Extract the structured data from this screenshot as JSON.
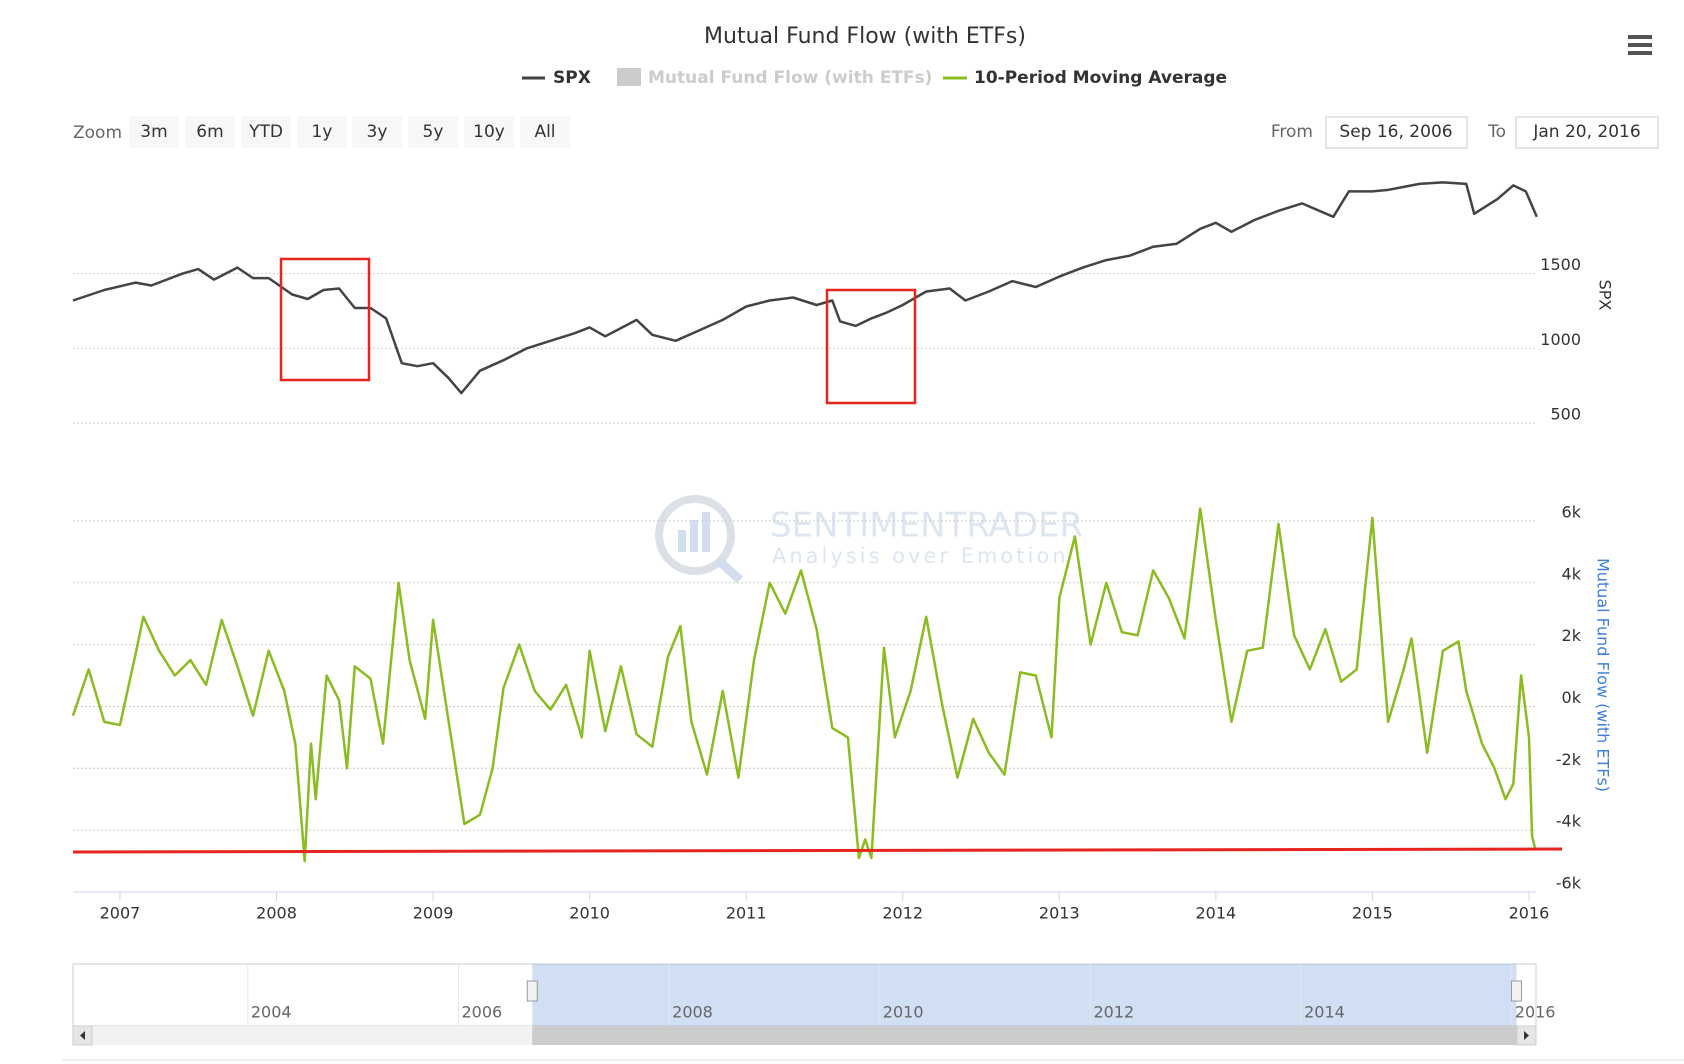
{
  "title": "Mutual Fund Flow (with ETFs)",
  "zoom": {
    "label": "Zoom",
    "buttons": [
      "3m",
      "6m",
      "YTD",
      "1y",
      "3y",
      "5y",
      "10y",
      "All"
    ]
  },
  "range": {
    "from_label": "From",
    "from": "Sep 16, 2006",
    "to_label": "To",
    "to": "Jan 20, 2016"
  },
  "watermark": {
    "title": "SENTIMENTRADER",
    "subtitle": "Analysis over Emotion"
  },
  "chart_data": [
    {
      "type": "line",
      "y_label": "SPX",
      "xlim": [
        2006.7,
        2016.045
      ],
      "ylim": [
        500,
        2200
      ],
      "yticks": [
        500,
        1000,
        1500
      ],
      "grid": true,
      "series": [
        {
          "name": "SPX",
          "color": "#434348",
          "x": [
            2006.7,
            2006.9,
            2007.1,
            2007.2,
            2007.4,
            2007.5,
            2007.6,
            2007.75,
            2007.85,
            2007.95,
            2008.1,
            2008.2,
            2008.3,
            2008.4,
            2008.5,
            2008.6,
            2008.7,
            2008.8,
            2008.9,
            2009.0,
            2009.1,
            2009.18,
            2009.3,
            2009.45,
            2009.6,
            2009.75,
            2009.9,
            2010.0,
            2010.1,
            2010.3,
            2010.4,
            2010.55,
            2010.7,
            2010.85,
            2011.0,
            2011.15,
            2011.3,
            2011.45,
            2011.55,
            2011.6,
            2011.7,
            2011.8,
            2011.9,
            2012.0,
            2012.15,
            2012.3,
            2012.4,
            2012.55,
            2012.7,
            2012.85,
            2013.0,
            2013.15,
            2013.3,
            2013.45,
            2013.6,
            2013.75,
            2013.9,
            2014.0,
            2014.1,
            2014.25,
            2014.4,
            2014.55,
            2014.75,
            2014.85,
            2015.0,
            2015.1,
            2015.3,
            2015.45,
            2015.6,
            2015.65,
            2015.8,
            2015.9,
            2015.98,
            2016.05
          ],
          "values": [
            1320,
            1390,
            1440,
            1420,
            1500,
            1530,
            1460,
            1540,
            1470,
            1470,
            1360,
            1330,
            1390,
            1400,
            1270,
            1270,
            1200,
            900,
            880,
            900,
            800,
            700,
            850,
            920,
            1000,
            1050,
            1100,
            1140,
            1080,
            1190,
            1090,
            1050,
            1120,
            1190,
            1280,
            1320,
            1340,
            1290,
            1320,
            1180,
            1150,
            1200,
            1240,
            1290,
            1380,
            1400,
            1320,
            1380,
            1450,
            1410,
            1480,
            1540,
            1590,
            1620,
            1680,
            1700,
            1800,
            1840,
            1780,
            1860,
            1920,
            1970,
            1880,
            2050,
            2050,
            2060,
            2100,
            2110,
            2100,
            1900,
            2000,
            2090,
            2050,
            1880
          ]
        }
      ]
    },
    {
      "type": "line",
      "y_label": "Mutual Fund Flow (with ETFs)",
      "xlim": [
        2006.7,
        2016.045
      ],
      "ylim": [
        -6000,
        7000
      ],
      "yticks": [
        {
          "value": -6000,
          "label": "-6k"
        },
        {
          "value": -4000,
          "label": "-4k"
        },
        {
          "value": -2000,
          "label": "-2k"
        },
        {
          "value": 0,
          "label": "0k"
        },
        {
          "value": 2000,
          "label": "2k"
        },
        {
          "value": 4000,
          "label": "4k"
        },
        {
          "value": 6000,
          "label": "6k"
        }
      ],
      "xticks": [
        2007,
        2008,
        2009,
        2010,
        2011,
        2012,
        2013,
        2014,
        2015,
        2016
      ],
      "grid": true,
      "hidden_series": {
        "name": "Mutual Fund Flow (with ETFs)",
        "color": "#cccccc"
      },
      "series": [
        {
          "name": "10-Period Moving Average",
          "color": "#8bbc21",
          "x": [
            2006.7,
            2006.8,
            2006.9,
            2007.0,
            2007.1,
            2007.15,
            2007.25,
            2007.35,
            2007.45,
            2007.55,
            2007.65,
            2007.75,
            2007.85,
            2007.95,
            2008.05,
            2008.12,
            2008.18,
            2008.22,
            2008.25,
            2008.32,
            2008.4,
            2008.45,
            2008.5,
            2008.6,
            2008.68,
            2008.78,
            2008.85,
            2008.95,
            2009.0,
            2009.1,
            2009.2,
            2009.3,
            2009.38,
            2009.45,
            2009.55,
            2009.65,
            2009.75,
            2009.85,
            2009.95,
            2010.0,
            2010.1,
            2010.2,
            2010.3,
            2010.4,
            2010.5,
            2010.58,
            2010.65,
            2010.75,
            2010.85,
            2010.95,
            2011.05,
            2011.15,
            2011.25,
            2011.35,
            2011.45,
            2011.55,
            2011.65,
            2011.72,
            2011.76,
            2011.8,
            2011.88,
            2011.95,
            2012.05,
            2012.15,
            2012.25,
            2012.35,
            2012.45,
            2012.55,
            2012.65,
            2012.75,
            2012.85,
            2012.95,
            2013.0,
            2013.1,
            2013.2,
            2013.3,
            2013.4,
            2013.5,
            2013.6,
            2013.7,
            2013.8,
            2013.9,
            2014.0,
            2014.1,
            2014.2,
            2014.3,
            2014.4,
            2014.5,
            2014.6,
            2014.7,
            2014.8,
            2014.9,
            2015.0,
            2015.1,
            2015.2,
            2015.25,
            2015.35,
            2015.45,
            2015.55,
            2015.6,
            2015.7,
            2015.78,
            2015.85,
            2015.9,
            2015.95,
            2016.0,
            2016.02,
            2016.04
          ],
          "values": [
            -300,
            1200,
            -500,
            -600,
            1700,
            2900,
            1800,
            1000,
            1500,
            700,
            2800,
            1300,
            -300,
            1800,
            500,
            -1200,
            -5000,
            -1200,
            -3000,
            1000,
            200,
            -2000,
            1300,
            900,
            -1200,
            4000,
            1500,
            -400,
            2800,
            -500,
            -3800,
            -3500,
            -2000,
            600,
            2000,
            500,
            -100,
            700,
            -1000,
            1800,
            -800,
            1300,
            -900,
            -1300,
            1600,
            2600,
            -500,
            -2200,
            500,
            -2300,
            1500,
            4000,
            3000,
            4400,
            2500,
            -700,
            -1000,
            -4900,
            -4300,
            -4900,
            1900,
            -1000,
            500,
            2900,
            100,
            -2300,
            -400,
            -1500,
            -2200,
            1100,
            1000,
            -1000,
            3500,
            5500,
            2000,
            4000,
            2400,
            2300,
            4400,
            3500,
            2200,
            6400,
            2800,
            -500,
            1800,
            1900,
            5900,
            2300,
            1200,
            2500,
            800,
            1200,
            6100,
            -500,
            1200,
            2200,
            -1500,
            1800,
            2100,
            500,
            -1200,
            -2000,
            -3000,
            -2500,
            1000,
            -1000,
            -4200,
            -4600
          ]
        }
      ]
    }
  ],
  "navigator": {
    "xlim": [
      2002.34,
      2016.23
    ],
    "xticks": [
      2004,
      2006,
      2008,
      2010,
      2012,
      2014,
      2016
    ]
  }
}
